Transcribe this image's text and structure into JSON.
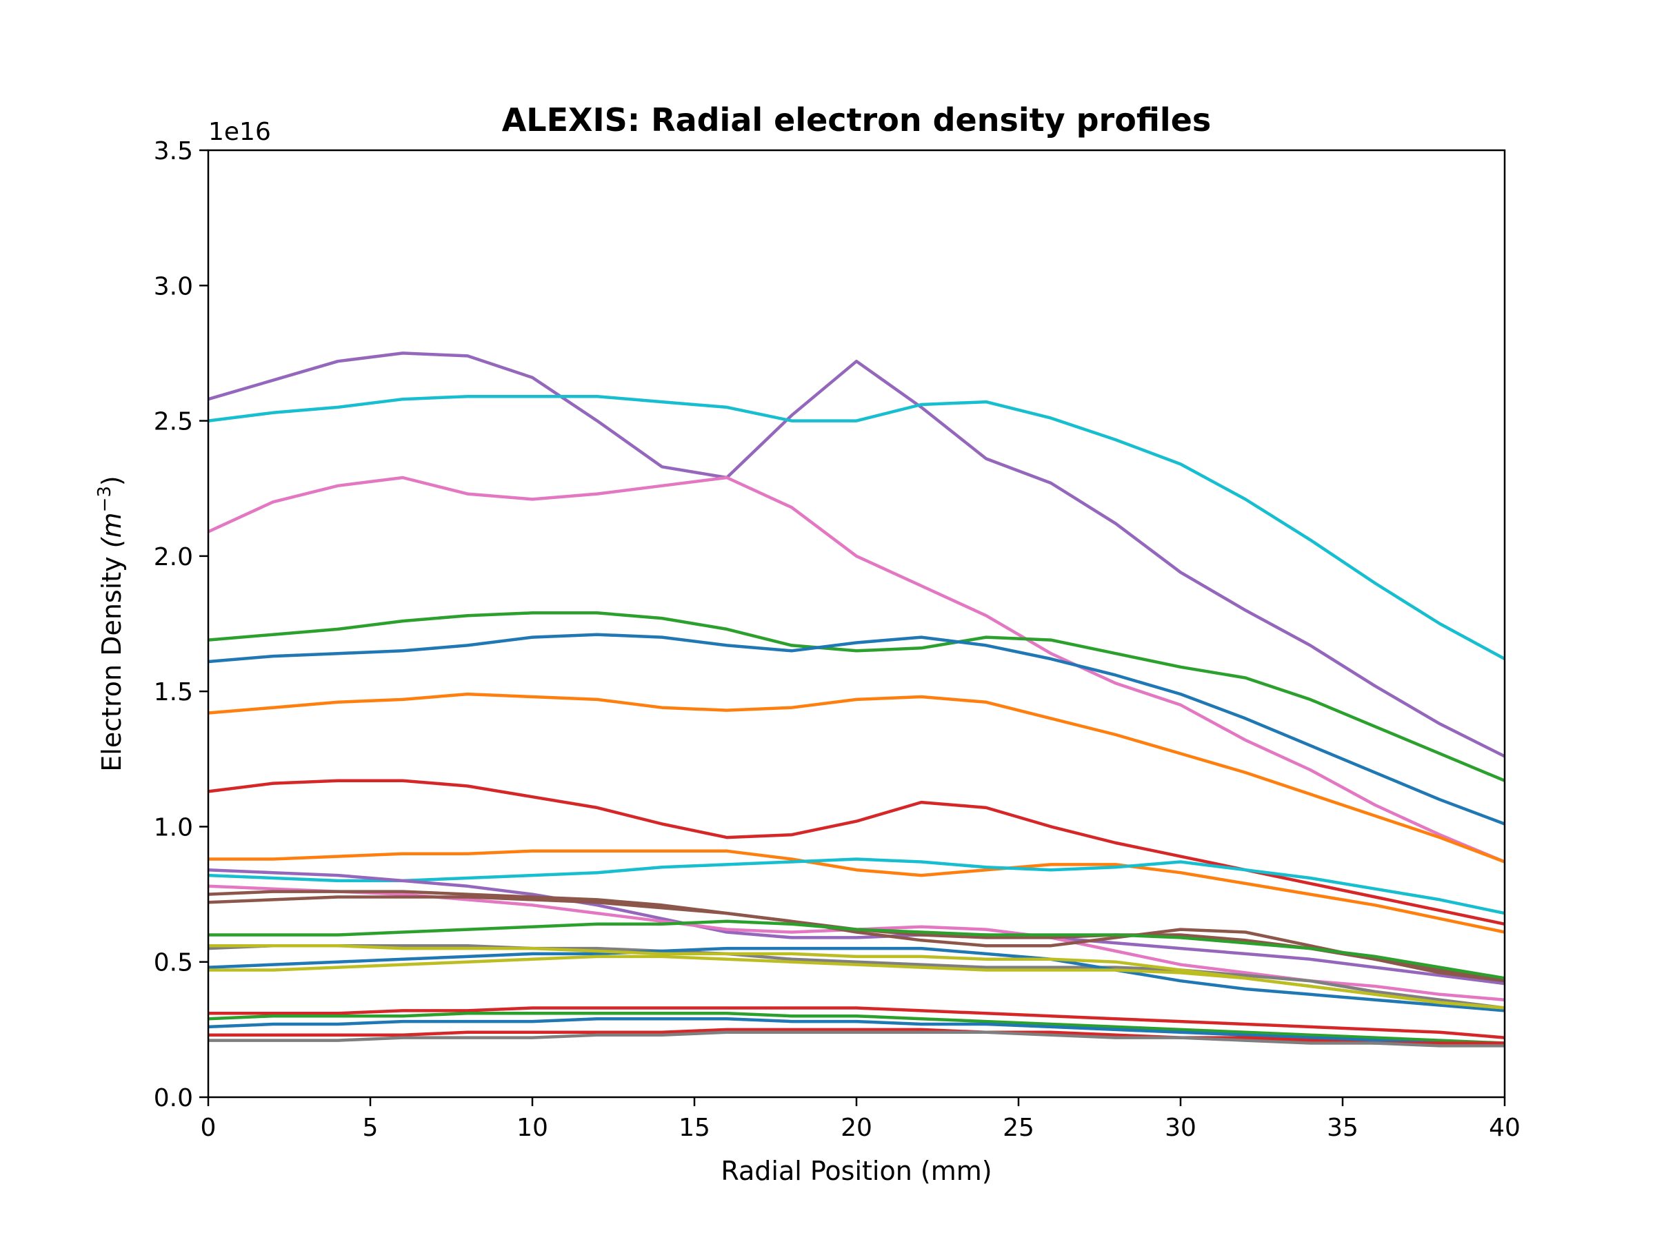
{
  "chart_data": {
    "type": "line",
    "title": "ALEXIS: Radial electron density profiles",
    "xlabel": "Radial Position (mm)",
    "ylabel_text": "Electron Density ",
    "ylabel_unit": "(m",
    "ylabel_exponent": "−3",
    "ylabel_close": ")",
    "y_offset_label": "1e16",
    "xlim": [
      0,
      40
    ],
    "ylim": [
      0,
      3.5
    ],
    "x_ticks": [
      "0",
      "5",
      "10",
      "15",
      "20",
      "25",
      "30",
      "35",
      "40"
    ],
    "y_ticks": [
      "0.0",
      "0.5",
      "1.0",
      "1.5",
      "2.0",
      "2.5",
      "3.0",
      "3.5"
    ],
    "grid": false,
    "legend": false,
    "x": [
      0,
      2,
      4,
      6,
      8,
      10,
      12,
      14,
      16,
      18,
      20,
      22,
      24,
      26,
      28,
      30,
      32,
      34,
      36,
      38,
      40
    ],
    "series": [
      {
        "color": "#9467bd",
        "values": [
          2.58,
          2.65,
          2.72,
          2.75,
          2.74,
          2.66,
          2.5,
          2.33,
          2.29,
          2.52,
          2.72,
          2.55,
          2.36,
          2.27,
          2.12,
          1.94,
          1.8,
          1.67,
          1.52,
          1.38,
          1.26
        ]
      },
      {
        "color": "#17becf",
        "values": [
          2.5,
          2.53,
          2.55,
          2.58,
          2.59,
          2.59,
          2.59,
          2.57,
          2.55,
          2.5,
          2.5,
          2.56,
          2.57,
          2.51,
          2.43,
          2.34,
          2.21,
          2.06,
          1.9,
          1.75,
          1.62
        ]
      },
      {
        "color": "#e377c2",
        "values": [
          2.09,
          2.2,
          2.26,
          2.29,
          2.23,
          2.21,
          2.23,
          2.26,
          2.29,
          2.18,
          2.0,
          1.89,
          1.78,
          1.64,
          1.53,
          1.45,
          1.32,
          1.21,
          1.08,
          0.97,
          0.87
        ]
      },
      {
        "color": "#2ca02c",
        "values": [
          1.69,
          1.71,
          1.73,
          1.76,
          1.78,
          1.79,
          1.79,
          1.77,
          1.73,
          1.67,
          1.65,
          1.66,
          1.7,
          1.69,
          1.64,
          1.59,
          1.55,
          1.47,
          1.37,
          1.27,
          1.17
        ]
      },
      {
        "color": "#1f77b4",
        "values": [
          1.61,
          1.63,
          1.64,
          1.65,
          1.67,
          1.7,
          1.71,
          1.7,
          1.67,
          1.65,
          1.68,
          1.7,
          1.67,
          1.62,
          1.56,
          1.49,
          1.4,
          1.3,
          1.2,
          1.1,
          1.01
        ]
      },
      {
        "color": "#ff7f0e",
        "values": [
          1.42,
          1.44,
          1.46,
          1.47,
          1.49,
          1.48,
          1.47,
          1.44,
          1.43,
          1.44,
          1.47,
          1.48,
          1.46,
          1.4,
          1.34,
          1.27,
          1.2,
          1.12,
          1.04,
          0.96,
          0.87
        ]
      },
      {
        "color": "#d62728",
        "values": [
          1.13,
          1.16,
          1.17,
          1.17,
          1.15,
          1.11,
          1.07,
          1.01,
          0.96,
          0.97,
          1.02,
          1.09,
          1.07,
          1.0,
          0.94,
          0.89,
          0.84,
          0.79,
          0.74,
          0.69,
          0.64
        ]
      },
      {
        "color": "#ff7f0e",
        "values": [
          0.88,
          0.88,
          0.89,
          0.9,
          0.9,
          0.91,
          0.91,
          0.91,
          0.91,
          0.88,
          0.84,
          0.82,
          0.84,
          0.86,
          0.86,
          0.83,
          0.79,
          0.75,
          0.71,
          0.66,
          0.61
        ]
      },
      {
        "color": "#17becf",
        "values": [
          0.82,
          0.81,
          0.8,
          0.8,
          0.81,
          0.82,
          0.83,
          0.85,
          0.86,
          0.87,
          0.88,
          0.87,
          0.85,
          0.84,
          0.85,
          0.87,
          0.84,
          0.81,
          0.77,
          0.73,
          0.68
        ]
      },
      {
        "color": "#9467bd",
        "values": [
          0.84,
          0.83,
          0.82,
          0.8,
          0.78,
          0.75,
          0.71,
          0.66,
          0.61,
          0.59,
          0.59,
          0.6,
          0.6,
          0.59,
          0.57,
          0.55,
          0.53,
          0.51,
          0.48,
          0.45,
          0.42
        ]
      },
      {
        "color": "#e377c2",
        "values": [
          0.78,
          0.77,
          0.76,
          0.75,
          0.73,
          0.71,
          0.68,
          0.65,
          0.62,
          0.61,
          0.62,
          0.63,
          0.62,
          0.59,
          0.54,
          0.49,
          0.46,
          0.43,
          0.41,
          0.38,
          0.36
        ]
      },
      {
        "color": "#8c564b",
        "values": [
          0.72,
          0.73,
          0.74,
          0.74,
          0.74,
          0.73,
          0.72,
          0.7,
          0.68,
          0.65,
          0.61,
          0.58,
          0.56,
          0.56,
          0.59,
          0.62,
          0.61,
          0.56,
          0.51,
          0.46,
          0.43
        ]
      },
      {
        "color": "#8c564b",
        "values": [
          0.75,
          0.76,
          0.76,
          0.76,
          0.75,
          0.74,
          0.73,
          0.71,
          0.68,
          0.65,
          0.62,
          0.6,
          0.59,
          0.59,
          0.6,
          0.6,
          0.58,
          0.55,
          0.51,
          0.47,
          0.44
        ]
      },
      {
        "color": "#2ca02c",
        "values": [
          0.6,
          0.6,
          0.6,
          0.61,
          0.62,
          0.63,
          0.64,
          0.64,
          0.65,
          0.64,
          0.62,
          0.61,
          0.6,
          0.6,
          0.6,
          0.59,
          0.57,
          0.55,
          0.52,
          0.48,
          0.44
        ]
      },
      {
        "color": "#7f7f7f",
        "values": [
          0.55,
          0.56,
          0.56,
          0.56,
          0.56,
          0.55,
          0.55,
          0.54,
          0.53,
          0.51,
          0.5,
          0.49,
          0.48,
          0.48,
          0.48,
          0.47,
          0.45,
          0.43,
          0.39,
          0.36,
          0.33
        ]
      },
      {
        "color": "#1f77b4",
        "values": [
          0.48,
          0.49,
          0.5,
          0.51,
          0.52,
          0.53,
          0.53,
          0.54,
          0.55,
          0.55,
          0.55,
          0.55,
          0.53,
          0.51,
          0.47,
          0.43,
          0.4,
          0.38,
          0.36,
          0.34,
          0.32
        ]
      },
      {
        "color": "#bcbd22",
        "values": [
          0.47,
          0.47,
          0.48,
          0.49,
          0.5,
          0.51,
          0.52,
          0.52,
          0.51,
          0.5,
          0.49,
          0.48,
          0.47,
          0.47,
          0.47,
          0.46,
          0.44,
          0.41,
          0.38,
          0.35,
          0.33
        ]
      },
      {
        "color": "#bcbd22",
        "values": [
          0.56,
          0.56,
          0.56,
          0.55,
          0.55,
          0.55,
          0.54,
          0.53,
          0.53,
          0.53,
          0.52,
          0.52,
          0.51,
          0.51,
          0.5,
          0.47,
          0.44,
          0.41,
          0.38,
          0.35,
          0.33
        ]
      },
      {
        "color": "#d62728",
        "values": [
          0.31,
          0.31,
          0.31,
          0.32,
          0.32,
          0.33,
          0.33,
          0.33,
          0.33,
          0.33,
          0.33,
          0.32,
          0.31,
          0.3,
          0.29,
          0.28,
          0.27,
          0.26,
          0.25,
          0.24,
          0.22
        ]
      },
      {
        "color": "#2ca02c",
        "values": [
          0.29,
          0.3,
          0.3,
          0.3,
          0.31,
          0.31,
          0.31,
          0.31,
          0.31,
          0.3,
          0.3,
          0.29,
          0.28,
          0.27,
          0.26,
          0.25,
          0.24,
          0.23,
          0.22,
          0.21,
          0.2
        ]
      },
      {
        "color": "#1f77b4",
        "values": [
          0.26,
          0.27,
          0.27,
          0.28,
          0.28,
          0.28,
          0.29,
          0.29,
          0.29,
          0.28,
          0.28,
          0.27,
          0.27,
          0.26,
          0.25,
          0.24,
          0.23,
          0.22,
          0.21,
          0.2,
          0.19
        ]
      },
      {
        "color": "#d62728",
        "values": [
          0.23,
          0.23,
          0.23,
          0.23,
          0.24,
          0.24,
          0.24,
          0.24,
          0.25,
          0.25,
          0.25,
          0.25,
          0.24,
          0.24,
          0.23,
          0.22,
          0.22,
          0.21,
          0.2,
          0.2,
          0.2
        ]
      },
      {
        "color": "#7f7f7f",
        "values": [
          0.21,
          0.21,
          0.21,
          0.22,
          0.22,
          0.22,
          0.23,
          0.23,
          0.24,
          0.24,
          0.24,
          0.24,
          0.24,
          0.23,
          0.22,
          0.22,
          0.21,
          0.2,
          0.2,
          0.19,
          0.19
        ]
      }
    ]
  }
}
